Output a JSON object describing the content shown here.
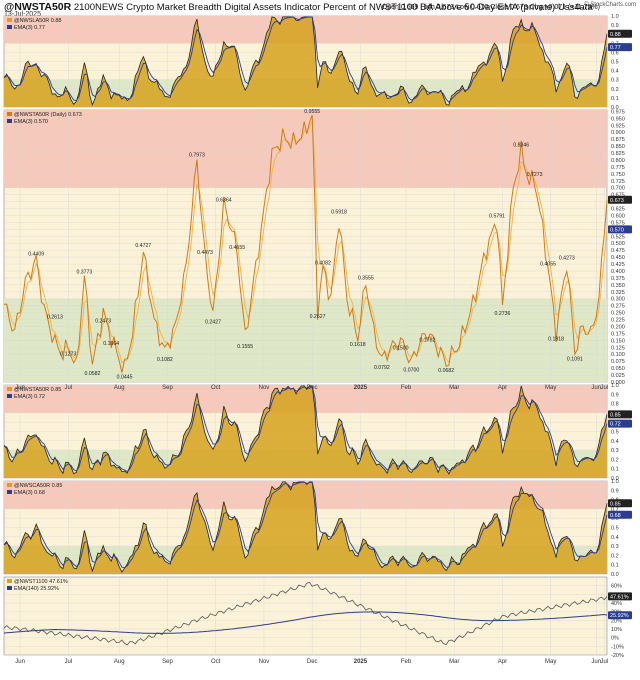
{
  "header": {
    "symbol": "@NWSTA50R",
    "description": "2100NEWS Crypto Market Breadth Digital Assets Indicator Percent of NWST1100 DA Above 50-Day EMA (private)",
    "exchange": "Uss4ata",
    "date": "13-Jul-2025",
    "ohlc": "Open 0.669  High 0.673  Low 0.610  Close 0.673  Chg +0.071 (+11.79%)",
    "brand": "© StockCharts.com"
  },
  "colors": {
    "price": "#d27a14",
    "fill": "#d6a21f",
    "ema": "#2b3d8f",
    "overbought": "#f6c9bb",
    "neutral": "#fbf2d8",
    "oversold": "#dfe8c6",
    "grid": "#d7d7d7"
  },
  "x_labels": {
    "months": [
      "Jun",
      "Jul",
      "Aug",
      "Sep",
      "Oct",
      "Nov",
      "Dec",
      "2025",
      "Feb",
      "Mar",
      "Apr",
      "May",
      "Jun",
      "Jul"
    ]
  },
  "chart_data": [
    {
      "id": "panel1",
      "type": "area",
      "legend": [
        "@NWSLA50R 0.88",
        "EMA(3) 0.77"
      ],
      "series_key": "s1",
      "ylim": [
        0,
        1
      ],
      "yticks": [
        "0.0",
        "0.1",
        "0.2",
        "0.3",
        "0.4",
        "0.5",
        "0.6",
        "0.7",
        "0.8",
        "0.9",
        "1.0"
      ],
      "last_labels": [
        "0.88",
        "0.77"
      ],
      "zones": [
        0.3,
        0.7
      ]
    },
    {
      "id": "panel2",
      "type": "line",
      "legend": [
        "@NWSTA50R (Daily) 0.673",
        "EMA(3) 0.570"
      ],
      "series_key": "s2",
      "ylim": [
        0,
        0.98
      ],
      "yticks": [
        "0.000",
        "0.025",
        "0.050",
        "0.075",
        "0.100",
        "0.125",
        "0.150",
        "0.175",
        "0.200",
        "0.225",
        "0.250",
        "0.275",
        "0.300",
        "0.325",
        "0.350",
        "0.375",
        "0.400",
        "0.425",
        "0.450",
        "0.475",
        "0.500",
        "0.525",
        "0.550",
        "0.575",
        "0.600",
        "0.625",
        "0.650",
        "0.675",
        "0.700",
        "0.725",
        "0.750",
        "0.775",
        "0.800",
        "0.825",
        "0.850",
        "0.875",
        "0.900",
        "0.925",
        "0.950",
        "0.975"
      ],
      "last_labels": [
        "0.673",
        "0.570"
      ],
      "zones": [
        0.3,
        0.7
      ],
      "annotations": [
        {
          "i": 12,
          "v": 0.4409,
          "label": "0.4409"
        },
        {
          "i": 19,
          "v": 0.2613,
          "label": "0.2613"
        },
        {
          "i": 24,
          "v": 0.1273,
          "label": "0.1273"
        },
        {
          "i": 30,
          "v": 0.3773,
          "label": "0.3773"
        },
        {
          "i": 33,
          "v": 0.0582,
          "label": "0.0582"
        },
        {
          "i": 37,
          "v": 0.2473,
          "label": "0.2473"
        },
        {
          "i": 40,
          "v": 0.1664,
          "label": "0.1664"
        },
        {
          "i": 45,
          "v": 0.0445,
          "label": "0.0445"
        },
        {
          "i": 52,
          "v": 0.4727,
          "label": "0.4727"
        },
        {
          "i": 60,
          "v": 0.1082,
          "label": "0.1082"
        },
        {
          "i": 72,
          "v": 0.7973,
          "label": "0.7973"
        },
        {
          "i": 75,
          "v": 0.4473,
          "label": "0.4473"
        },
        {
          "i": 78,
          "v": 0.2427,
          "label": "0.2427"
        },
        {
          "i": 82,
          "v": 0.6364,
          "label": "0.6364"
        },
        {
          "i": 87,
          "v": 0.4655,
          "label": "0.4655"
        },
        {
          "i": 90,
          "v": 0.1555,
          "label": "0.1555"
        },
        {
          "i": 115,
          "v": 0.9555,
          "label": "0.9555"
        },
        {
          "i": 117,
          "v": 0.2627,
          "label": "0.2627"
        },
        {
          "i": 119,
          "v": 0.4082,
          "label": "0.4082"
        },
        {
          "i": 125,
          "v": 0.5918,
          "label": "0.5918"
        },
        {
          "i": 132,
          "v": 0.1618,
          "label": "0.1618"
        },
        {
          "i": 135,
          "v": 0.3555,
          "label": "0.3555"
        },
        {
          "i": 141,
          "v": 0.0792,
          "label": "0.0792"
        },
        {
          "i": 148,
          "v": 0.15,
          "label": "0.1500"
        },
        {
          "i": 152,
          "v": 0.07,
          "label": "0.0700"
        },
        {
          "i": 158,
          "v": 0.1782,
          "label": "0.1782"
        },
        {
          "i": 165,
          "v": 0.0682,
          "label": "0.0682"
        },
        {
          "i": 186,
          "v": 0.2736,
          "label": "0.2736"
        },
        {
          "i": 184,
          "v": 0.5791,
          "label": "0.5791"
        },
        {
          "i": 193,
          "v": 0.8346,
          "label": "0.8346"
        },
        {
          "i": 198,
          "v": 0.7273,
          "label": "0.7273"
        },
        {
          "i": 203,
          "v": 0.4055,
          "label": "0.4055"
        },
        {
          "i": 206,
          "v": 0.1818,
          "label": "0.1818"
        },
        {
          "i": 210,
          "v": 0.4273,
          "label": "0.4273"
        },
        {
          "i": 213,
          "v": 0.1091,
          "label": "0.1091"
        }
      ]
    },
    {
      "id": "panel3",
      "type": "area",
      "legend": [
        "@NWSTA50R 0.85",
        "EMA(3) 0.72"
      ],
      "series_key": "s3",
      "ylim": [
        0,
        1
      ],
      "yticks": [
        "0.0",
        "0.1",
        "0.2",
        "0.3",
        "0.4",
        "0.5",
        "0.6",
        "0.7",
        "0.8",
        "0.9",
        "1.0"
      ],
      "last_labels": [
        "0.85",
        "0.72"
      ],
      "zones": [
        0.3,
        0.7
      ]
    },
    {
      "id": "panel4",
      "type": "area",
      "legend": [
        "@NWSCA50R 0.85",
        "EMA(3) 0.68"
      ],
      "series_key": "s4",
      "ylim": [
        0,
        1
      ],
      "yticks": [
        "0.0",
        "0.1",
        "0.2",
        "0.3",
        "0.4",
        "0.5",
        "0.6",
        "0.7",
        "0.8",
        "0.9",
        "1.0"
      ],
      "last_labels": [
        "0.85",
        "0.68"
      ],
      "zones": [
        0.3,
        0.7
      ]
    },
    {
      "id": "panel5",
      "type": "line",
      "legend": [
        "@NWST1100 47.61%",
        "EMA(140) 25.92%"
      ],
      "series_key": "s5",
      "ylim": [
        -20,
        70
      ],
      "yticks": [
        "-20%",
        "-10%",
        "0%",
        "10%",
        "20%",
        "30%",
        "40%",
        "50%",
        "60%"
      ],
      "last_labels": [
        "47.61%",
        "25.92%"
      ]
    }
  ]
}
